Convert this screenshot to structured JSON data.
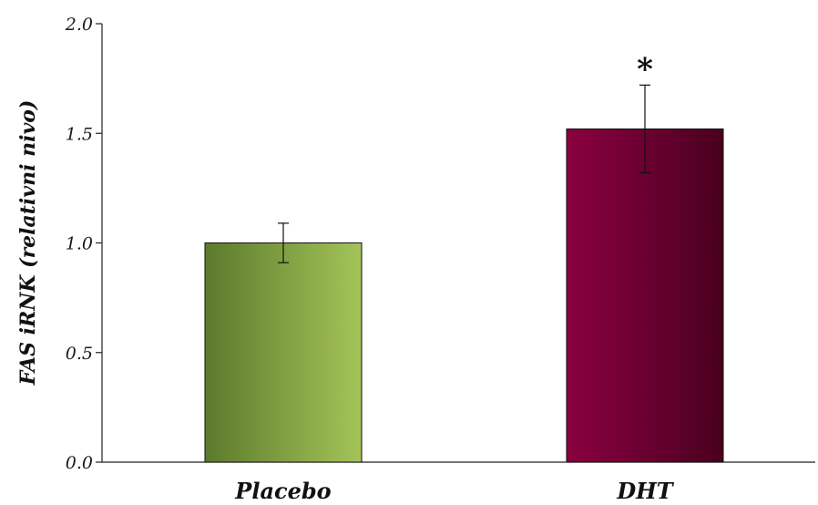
{
  "chart_data": {
    "type": "bar",
    "categories": [
      "Placebo",
      "DHT"
    ],
    "values": [
      1.0,
      1.52
    ],
    "errors": [
      0.09,
      0.2
    ],
    "annotations": [
      "",
      "*"
    ],
    "xlabel": "",
    "ylabel": "FAS iRNK (relativni nivo)",
    "ylim": [
      0,
      2.0
    ],
    "yticks": [
      "0.0",
      "0.5",
      "1.0",
      "1.5",
      "2.0"
    ],
    "grid": false,
    "colors": {
      "Placebo": {
        "dark": "#5c7a2c",
        "light": "#a4c459"
      },
      "DHT": {
        "light": "#8a0040",
        "dark": "#4a0020"
      },
      "axis": "#222222"
    }
  }
}
